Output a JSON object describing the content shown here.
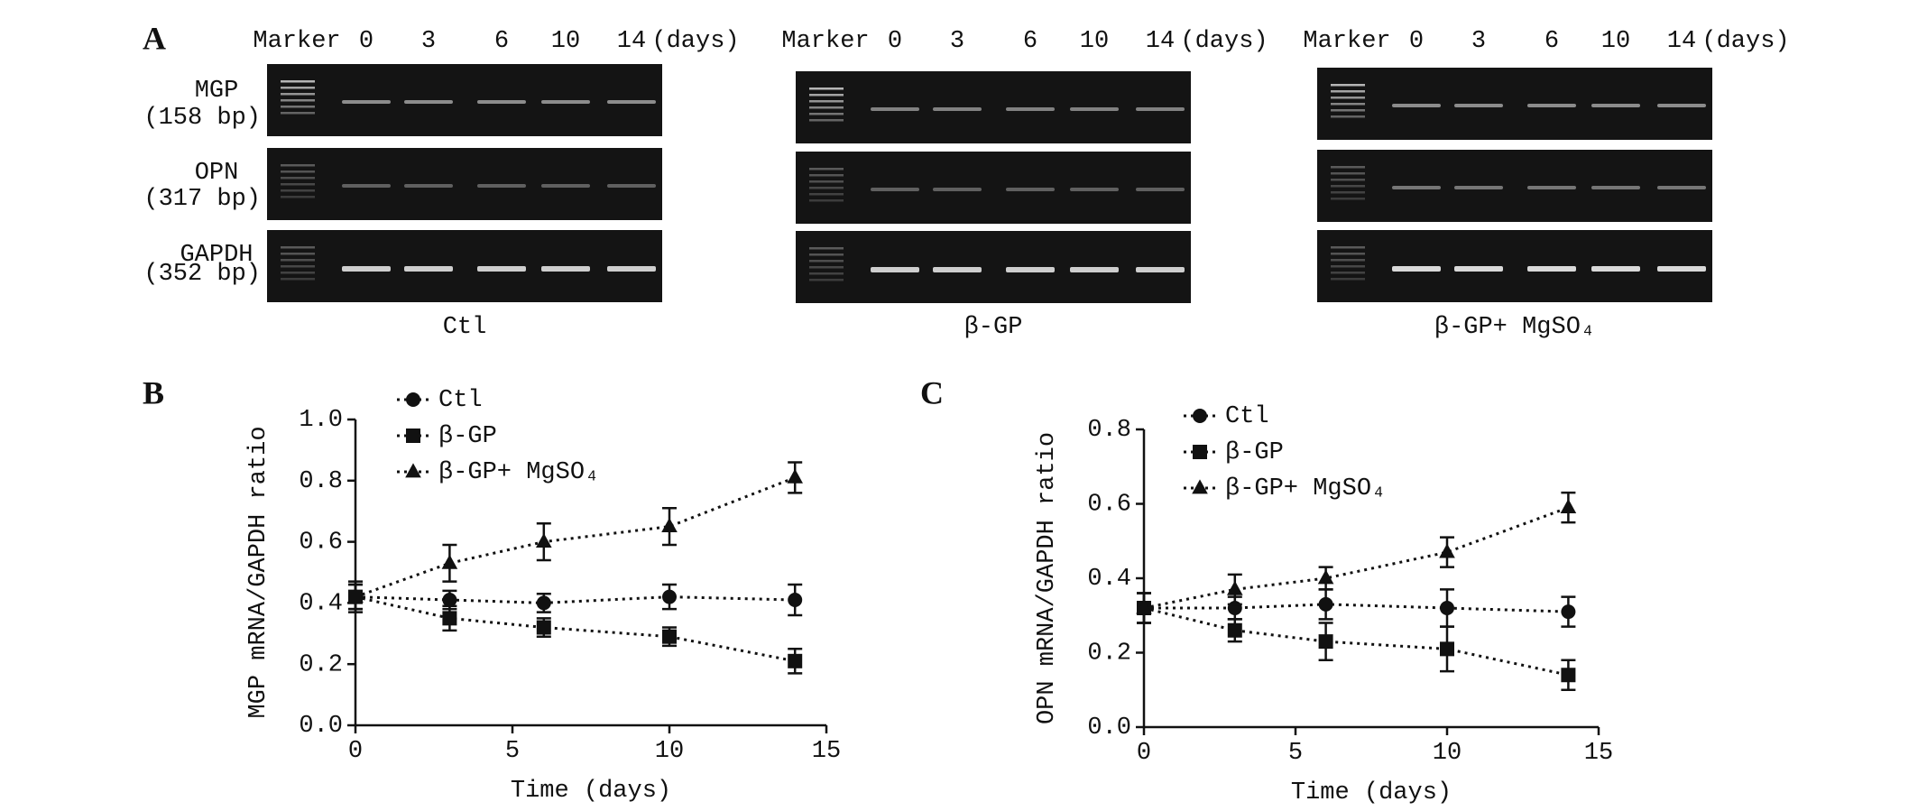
{
  "gels": {
    "letter": "A",
    "row_labels": [
      {
        "name": "MGP",
        "size": "(158 bp)"
      },
      {
        "name": "OPN",
        "size": "(317 bp)"
      },
      {
        "name": "GAPDH",
        "size": "(352 bp)"
      }
    ],
    "groups": [
      {
        "lanes": [
          "Marker",
          "0",
          "3",
          "6",
          "10",
          "14"
        ],
        "unit": "(days)",
        "caption": "Ctl"
      },
      {
        "lanes": [
          "Marker",
          "0",
          "3",
          "6",
          "10",
          "14"
        ],
        "unit": "(days)",
        "caption": "β-GP"
      },
      {
        "lanes": [
          "Marker",
          "0",
          "3",
          "6",
          "10",
          "14"
        ],
        "unit": "(days)",
        "caption": "β-GP+ MgSO₄"
      }
    ]
  },
  "chart_data": [
    {
      "type": "line",
      "letter": "B",
      "xlabel": "Time (days)",
      "ylabel": "MGP mRNA/GAPDH ratio",
      "x": [
        0,
        3,
        6,
        10,
        14
      ],
      "xlim": [
        0,
        15
      ],
      "xticks": [
        0,
        5,
        10,
        15
      ],
      "ylim": [
        0,
        1
      ],
      "yticks": [
        {
          "value": 0,
          "label": "0.0"
        },
        0.2,
        0.4,
        0.6,
        0.8,
        {
          "value": 1,
          "label": "1.0"
        }
      ],
      "legend": "upper left",
      "line_style": "dotted",
      "series": [
        {
          "name": "Ctl",
          "color": "#111111",
          "marker": "circle",
          "values": [
            0.42,
            0.41,
            0.4,
            0.42,
            0.41
          ],
          "errors": [
            0.04,
            0.03,
            0.03,
            0.04,
            0.05
          ]
        },
        {
          "name": "β-GP",
          "color": "#111111",
          "marker": "square",
          "values": [
            0.42,
            0.35,
            0.32,
            0.29,
            0.21
          ],
          "errors": [
            0.04,
            0.04,
            0.03,
            0.03,
            0.04
          ]
        },
        {
          "name": "β-GP+ MgSO₄",
          "color": "#111111",
          "marker": "triangle",
          "values": [
            0.42,
            0.53,
            0.6,
            0.65,
            0.81
          ],
          "errors": [
            0.05,
            0.06,
            0.06,
            0.06,
            0.05
          ]
        }
      ]
    },
    {
      "type": "line",
      "letter": "C",
      "xlabel": "Time (days)",
      "ylabel": "OPN mRNA/GAPDH ratio",
      "x": [
        0,
        3,
        6,
        10,
        14
      ],
      "xlim": [
        0,
        15
      ],
      "xticks": [
        0,
        5,
        10,
        15
      ],
      "ylim": [
        0,
        0.8
      ],
      "yticks": [
        {
          "value": 0,
          "label": "0.0"
        },
        0.2,
        0.4,
        0.6,
        0.8
      ],
      "legend": "upper left",
      "line_style": "dotted",
      "series": [
        {
          "name": "Ctl",
          "color": "#111111",
          "marker": "circle",
          "values": [
            0.32,
            0.32,
            0.33,
            0.32,
            0.31
          ],
          "errors": [
            0.04,
            0.03,
            0.04,
            0.05,
            0.04
          ]
        },
        {
          "name": "β-GP",
          "color": "#111111",
          "marker": "square",
          "values": [
            0.32,
            0.26,
            0.23,
            0.21,
            0.14
          ],
          "errors": [
            0.04,
            0.03,
            0.05,
            0.06,
            0.04
          ]
        },
        {
          "name": "β-GP+ MgSO₄",
          "color": "#111111",
          "marker": "triangle",
          "values": [
            0.32,
            0.37,
            0.4,
            0.47,
            0.59
          ],
          "errors": [
            0.04,
            0.04,
            0.03,
            0.04,
            0.04
          ]
        }
      ]
    }
  ]
}
